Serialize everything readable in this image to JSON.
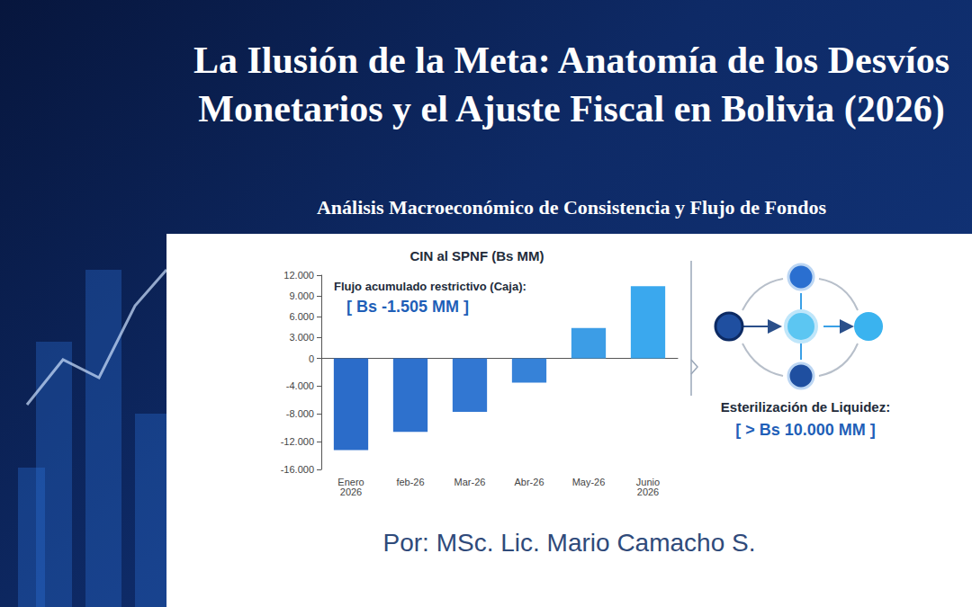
{
  "slide": {
    "title": "La Ilusión de la Meta: Anatomía de los Desvíos Monetarios y el Ajuste Fiscal en Bolivia (2026)",
    "subtitle": "Análisis Macroeconómico de Consistencia y Flujo de Fondos",
    "author": "Por: MSc. Lic. Mario Camacho S."
  },
  "diagram": {
    "label": "Esterilización de Liquidez:",
    "value": "[ > Bs 10.000 MM ]"
  },
  "chart_data": {
    "type": "bar",
    "title": "CIN al SPNF (Bs MM)",
    "categories": [
      "Enero 2026",
      "feb-26",
      "Mar-26",
      "Abr-26",
      "May-26",
      "Junio 2026"
    ],
    "values": [
      -13200,
      -10600,
      -7700,
      -3500,
      4400,
      10400
    ],
    "colors": [
      "#2b6cc9",
      "#2e71cd",
      "#3277d2",
      "#3682d8",
      "#3c9de6",
      "#3aa8ee"
    ],
    "annotations": [
      "Flujo acumulado restrictivo (Caja):",
      "[ Bs -1.505 MM ]"
    ],
    "ylim": [
      -16000,
      12000
    ],
    "yticks": [
      {
        "value": 12000,
        "label": "12.000"
      },
      {
        "value": 9000,
        "label": "9.000"
      },
      {
        "value": 6000,
        "label": "6.000"
      },
      {
        "value": 3000,
        "label": "3.000"
      },
      0,
      {
        "value": -4000,
        "label": "-4.000"
      },
      {
        "value": -8000,
        "label": "-8.000"
      },
      {
        "value": -12000,
        "label": "-12.000"
      },
      {
        "value": -16000,
        "label": "-16.000"
      }
    ],
    "grid": false
  }
}
